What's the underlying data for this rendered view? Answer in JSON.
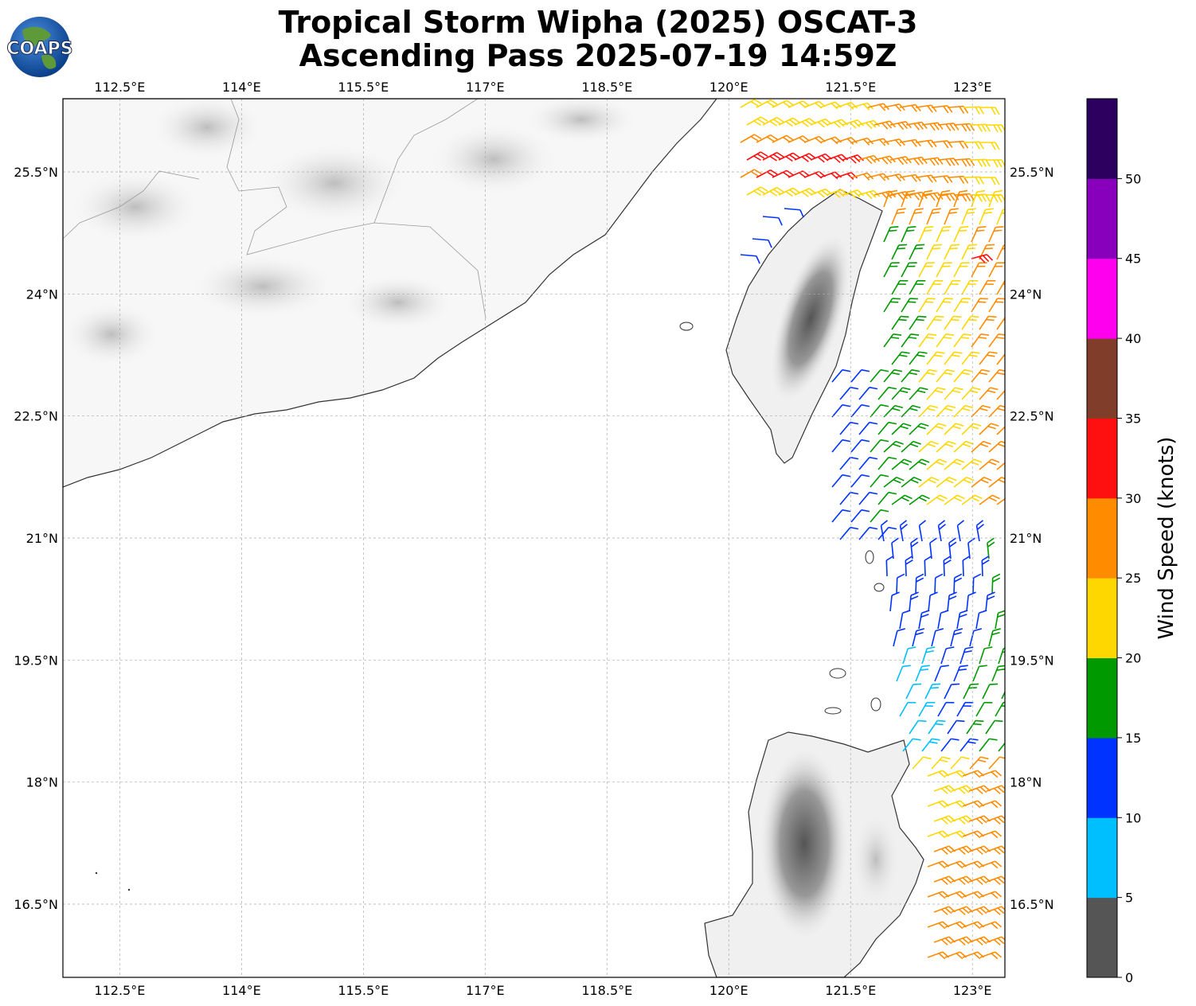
{
  "title": {
    "line1": "Tropical Storm Wipha (2025) OSCAT-3",
    "line2": "Ascending Pass 2025-07-19 14:59Z"
  },
  "logo": {
    "text": "COAPS"
  },
  "map": {
    "lon_range": [
      111.8,
      123.4
    ],
    "lat_range": [
      15.6,
      26.4
    ],
    "lon_ticks": [
      "112.5°E",
      "114°E",
      "115.5°E",
      "117°E",
      "118.5°E",
      "120°E",
      "121.5°E",
      "123°E"
    ],
    "lat_ticks": [
      "25.5°N",
      "24°N",
      "22.5°N",
      "21°N",
      "19.5°N",
      "18°N",
      "16.5°N"
    ],
    "gridlines": true,
    "land_color": "#ffffff",
    "terrain_shading": "grayscale"
  },
  "colorbar": {
    "label": "Wind Speed (knots)",
    "ticks": [
      "0",
      "5",
      "10",
      "15",
      "20",
      "25",
      "30",
      "35",
      "40",
      "45",
      "50"
    ],
    "colors": [
      "#555555",
      "#00bfff",
      "#0033ff",
      "#009900",
      "#ffd700",
      "#ff8c00",
      "#ff1010",
      "#803d2a",
      "#ff00ee",
      "#8800bb",
      "#2d0060"
    ]
  }
}
